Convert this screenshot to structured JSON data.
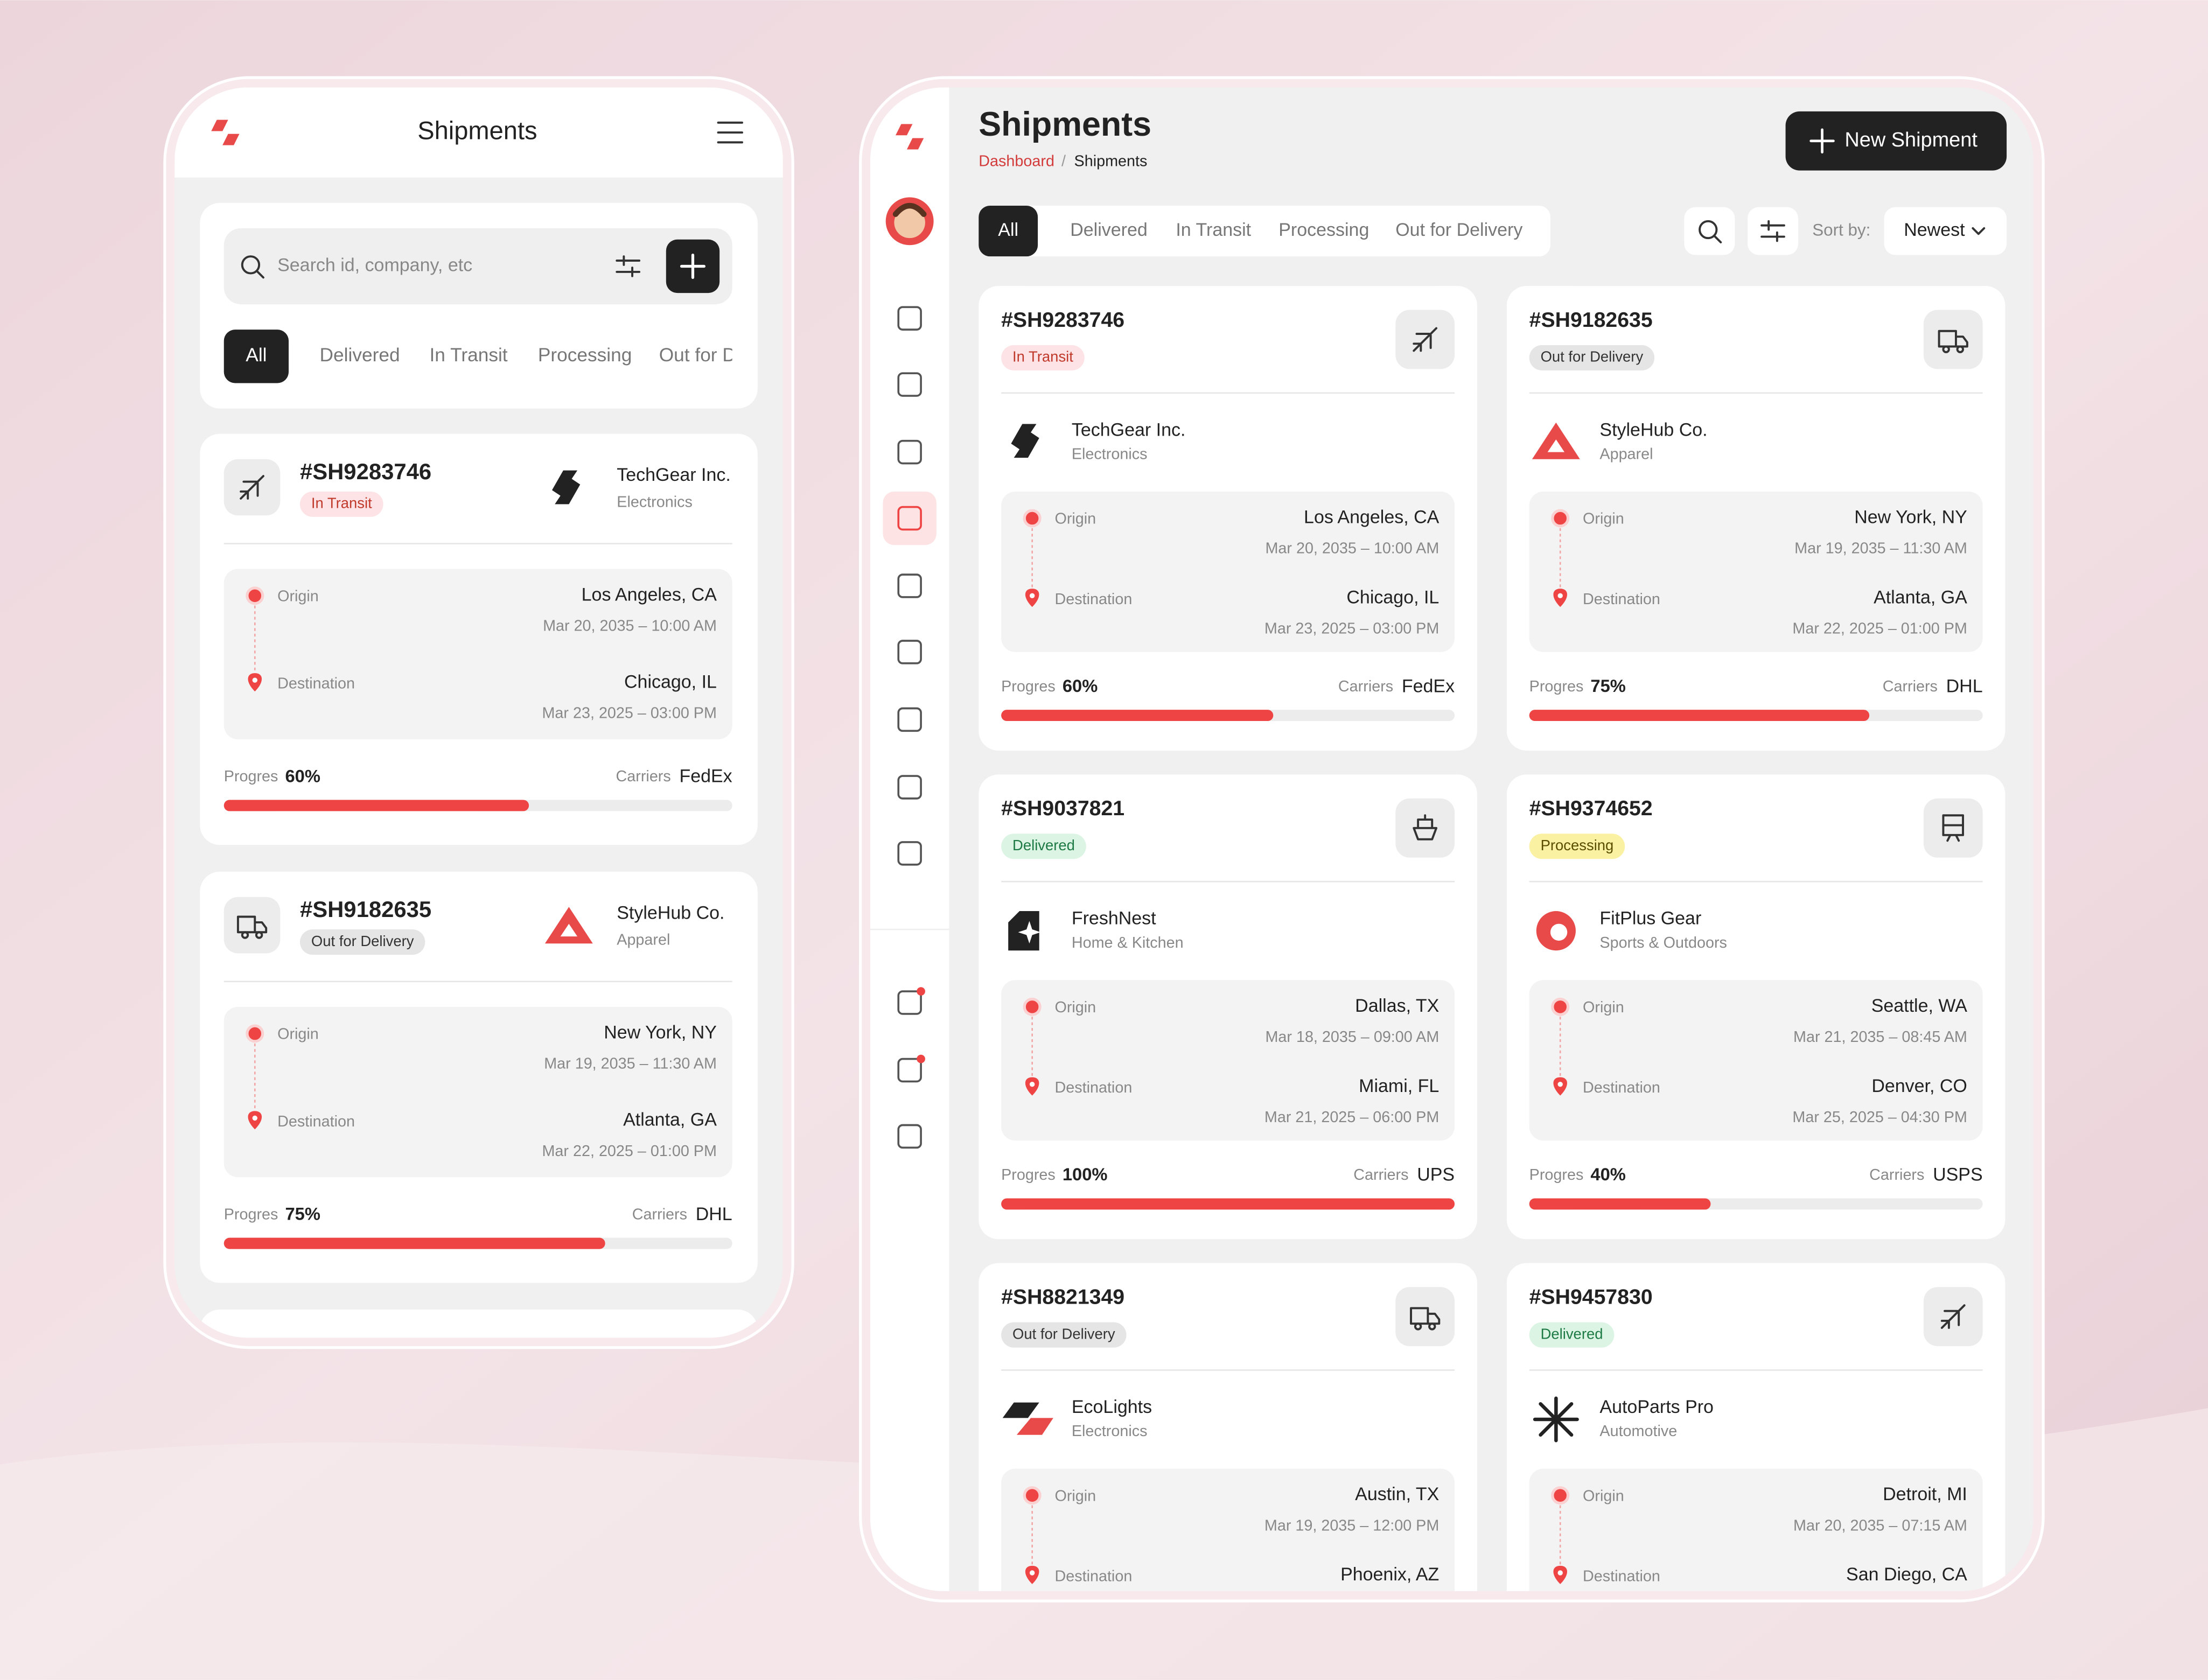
{
  "mobile": {
    "title": "Shipments",
    "search_placeholder": "Search id, company, etc"
  },
  "desktop": {
    "title": "Shipments",
    "breadcrumb": [
      "Dashboard",
      "Shipments"
    ],
    "new_button": "New Shipment",
    "sort_label": "Sort by:",
    "sort_value": "Newest"
  },
  "tabs": [
    "All",
    "Delivered",
    "In Transit",
    "Processing",
    "Out for Delivery"
  ],
  "labels": {
    "origin": "Origin",
    "destination": "Destination",
    "progress": "Progres",
    "carriers": "Carriers"
  },
  "shipments": [
    {
      "id": "#SH9283746",
      "status": "In Transit",
      "company": "TechGear Inc.",
      "category": "Electronics",
      "origin": "Los Angeles, CA",
      "origin_time": "Mar 20, 2035 – 10:00 AM",
      "destination": "Chicago, IL",
      "destination_time": "Mar 23, 2025 – 03:00 PM",
      "progress": "60%",
      "carrier": "FedEx"
    },
    {
      "id": "#SH9182635",
      "status": "Out for Delivery",
      "company": "StyleHub Co.",
      "category": "Apparel",
      "origin": "New York, NY",
      "origin_time": "Mar 19, 2035 – 11:30 AM",
      "destination": "Atlanta, GA",
      "destination_time": "Mar 22, 2025 –  01:00 PM",
      "progress": "75%",
      "carrier": "DHL"
    },
    {
      "id": "#SH9037821",
      "status": "Delivered",
      "company": "FreshNest",
      "category": "Home & Kitchen",
      "origin": "Dallas, TX",
      "origin_time": "Mar 18, 2035 – 09:00 AM",
      "destination": "Miami, FL",
      "destination_time": "Mar 21, 2025 – 06:00 PM",
      "progress": "100%",
      "carrier": "UPS"
    },
    {
      "id": "#SH9374652",
      "status": "Processing",
      "company": "FitPlus Gear",
      "category": "Sports & Outdoors",
      "origin": "Seattle, WA",
      "origin_time": "Mar 21, 2035 – 08:45 AM",
      "destination": "Denver, CO",
      "destination_time": "Mar 25, 2025 – 04:30 PM",
      "progress": "40%",
      "carrier": "USPS"
    },
    {
      "id": "#SH8821349",
      "status": "Out for Delivery",
      "company": "EcoLights",
      "category": "Electronics",
      "origin": "Austin, TX",
      "origin_time": "Mar 19, 2035 – 12:00 PM",
      "destination": "Phoenix, AZ"
    },
    {
      "id": "#SH9457830",
      "status": "Delivered",
      "company": "AutoParts Pro",
      "category": "Automotive",
      "origin": "Detroit, MI",
      "origin_time": "Mar 20, 2035 – 07:15 AM",
      "destination": "San Diego, CA"
    }
  ]
}
